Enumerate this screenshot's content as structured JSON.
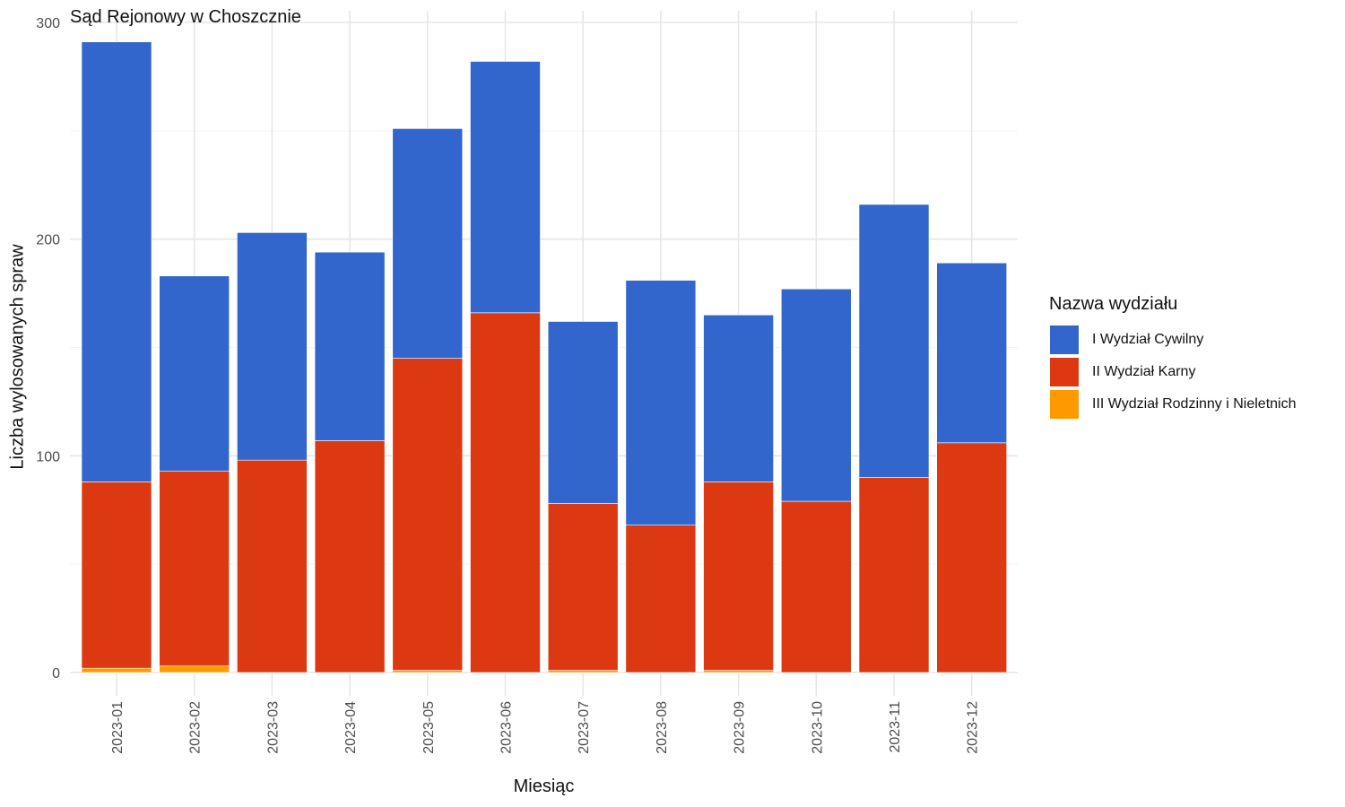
{
  "chart_data": {
    "type": "bar",
    "stacked": true,
    "title": "Sąd Rejonowy w Choszcznie",
    "xlabel": "Miesiąc",
    "ylabel": "Liczba wylosowanych spraw",
    "ylim": [
      0,
      300
    ],
    "yticks": [
      0,
      100,
      200,
      300
    ],
    "grid": true,
    "legend_title": "Nazwa wydziału",
    "legend_position": "right",
    "categories": [
      "2023-01",
      "2023-02",
      "2023-03",
      "2023-04",
      "2023-05",
      "2023-06",
      "2023-07",
      "2023-08",
      "2023-09",
      "2023-10",
      "2023-11",
      "2023-12"
    ],
    "series": [
      {
        "name": "I Wydział Cywilny",
        "color": "#3366cc",
        "values": [
          203,
          90,
          105,
          87,
          106,
          116,
          84,
          113,
          77,
          98,
          126,
          83
        ]
      },
      {
        "name": "II Wydział Karny",
        "color": "#dc3912",
        "values": [
          86,
          90,
          98,
          107,
          144,
          166,
          77,
          68,
          87,
          79,
          90,
          106
        ]
      },
      {
        "name": "III Wydział Rodzinny i Nieletnich",
        "color": "#ff9900",
        "values": [
          2,
          3,
          0,
          0,
          1,
          0,
          1,
          0,
          1,
          0,
          0,
          0
        ]
      }
    ]
  }
}
